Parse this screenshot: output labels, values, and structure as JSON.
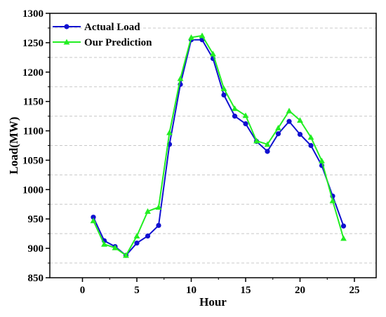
{
  "chart_data": {
    "type": "line",
    "title": "",
    "xlabel": "Hour",
    "ylabel": "Load(MW)",
    "xlim": [
      -3,
      27
    ],
    "ylim": [
      850,
      1300
    ],
    "xticks": [
      0,
      5,
      10,
      15,
      20,
      25
    ],
    "yticks": [
      850,
      900,
      950,
      1000,
      1050,
      1100,
      1150,
      1200,
      1250,
      1300
    ],
    "grid": "horizontal dashed",
    "legend_position": "top-left",
    "x": [
      1,
      2,
      3,
      4,
      5,
      6,
      7,
      8,
      9,
      10,
      11,
      12,
      13,
      14,
      15,
      16,
      17,
      18,
      19,
      20,
      21,
      22,
      23,
      24
    ],
    "series": [
      {
        "name": "Actual Load",
        "color": "#1010d0",
        "marker": "circle",
        "values": [
          953,
          913,
          903,
          888,
          909,
          921,
          939,
          1077,
          1179,
          1255,
          1255,
          1223,
          1161,
          1125,
          1112,
          1082,
          1065,
          1095,
          1116,
          1094,
          1075,
          1041,
          989,
          938
        ]
      },
      {
        "name": "Our Prediction",
        "color": "#22ee22",
        "marker": "triangle",
        "values": [
          947,
          907,
          901,
          888,
          921,
          963,
          970,
          1097,
          1189,
          1259,
          1262,
          1231,
          1172,
          1138,
          1126,
          1083,
          1077,
          1105,
          1134,
          1118,
          1089,
          1049,
          981,
          917
        ]
      }
    ]
  }
}
